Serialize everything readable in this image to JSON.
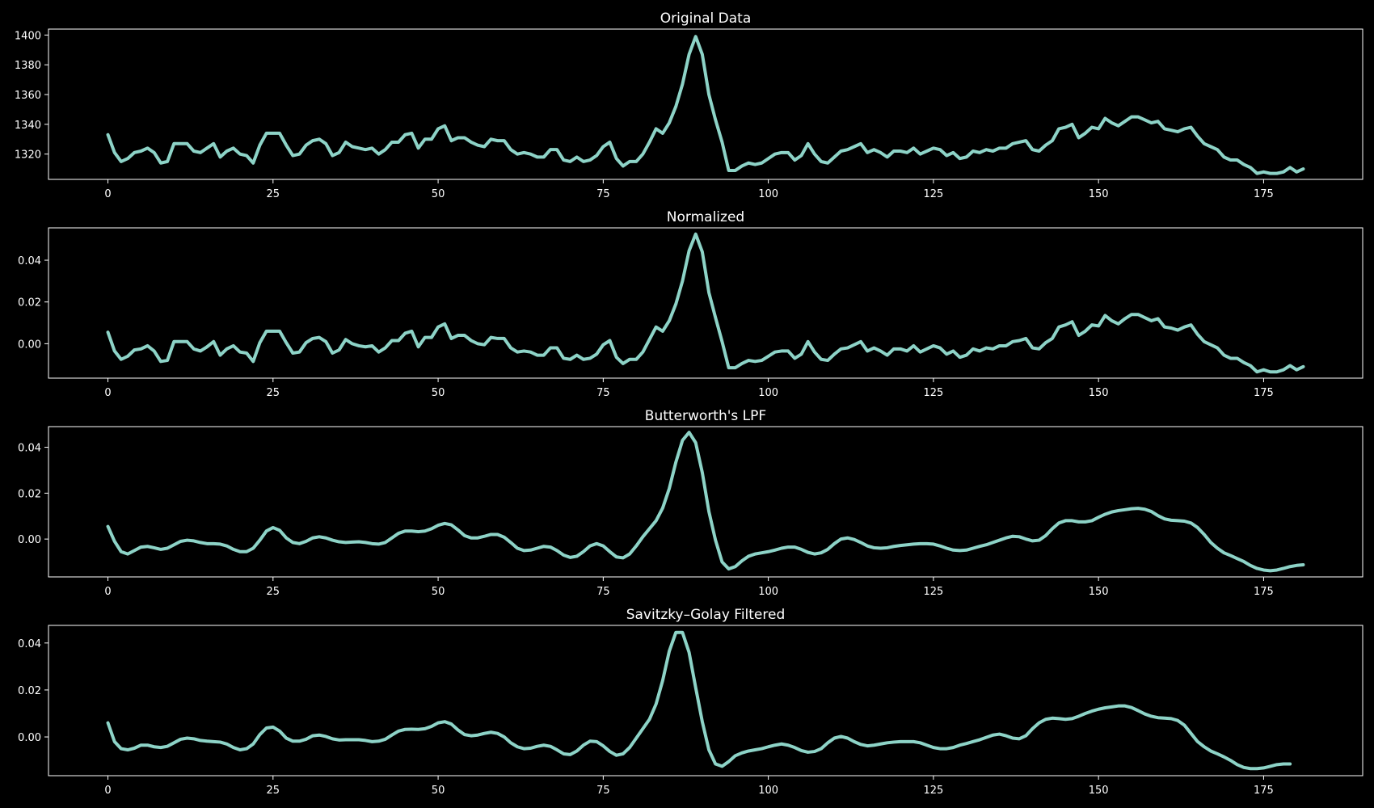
{
  "chart_data": [
    {
      "type": "line",
      "title": "Original Data",
      "xlim": [
        -9,
        190
      ],
      "ylim": [
        1303,
        1404
      ],
      "xticks": [
        0,
        25,
        50,
        75,
        100,
        125,
        150,
        175
      ],
      "yticks": [
        1320,
        1340,
        1360,
        1380,
        1400
      ],
      "ytick_decimals": 0,
      "line_color": "#8dd3c7",
      "series": [
        {
          "x_start": 0,
          "values": [
            1333,
            1321,
            1315,
            1317,
            1321,
            1322,
            1324,
            1321,
            1314,
            1315,
            1327,
            1327,
            1327,
            1322,
            1321,
            1324,
            1327,
            1318,
            1322,
            1324,
            1320,
            1319,
            1314,
            1326,
            1334,
            1334,
            1334,
            1326,
            1319,
            1320,
            1326,
            1329,
            1330,
            1327,
            1319,
            1321,
            1328,
            1325,
            1324,
            1323,
            1324,
            1320,
            1323,
            1328,
            1328,
            1333,
            1334,
            1324,
            1330,
            1330,
            1337,
            1339,
            1329,
            1331,
            1331,
            1328,
            1326,
            1325,
            1330,
            1329,
            1329,
            1323,
            1320,
            1321,
            1320,
            1318,
            1318,
            1323,
            1323,
            1316,
            1315,
            1318,
            1315,
            1316,
            1319,
            1325,
            1328,
            1317,
            1312,
            1315,
            1315,
            1320,
            1328,
            1337,
            1334,
            1341,
            1352,
            1367,
            1387,
            1399,
            1387,
            1360,
            1343,
            1328,
            1309,
            1309,
            1312,
            1314,
            1313,
            1314,
            1317,
            1320,
            1321,
            1321,
            1316,
            1319,
            1327,
            1320,
            1315,
            1314,
            1318,
            1322,
            1323,
            1325,
            1327,
            1321,
            1323,
            1321,
            1318,
            1322,
            1322,
            1321,
            1324,
            1320,
            1322,
            1324,
            1323,
            1319,
            1321,
            1317,
            1318,
            1322,
            1321,
            1323,
            1322,
            1324,
            1324,
            1327,
            1328,
            1329,
            1323,
            1322,
            1326,
            1329,
            1337,
            1338,
            1340,
            1331,
            1334,
            1338,
            1337,
            1344,
            1341,
            1339,
            1342,
            1345,
            1345,
            1343,
            1341,
            1342,
            1337,
            1336,
            1335,
            1337,
            1338,
            1332,
            1327,
            1325,
            1323,
            1318,
            1316,
            1316,
            1313,
            1311,
            1307,
            1308,
            1307,
            1307,
            1308,
            1311,
            1308,
            1310
          ]
        }
      ]
    },
    {
      "type": "line",
      "title": "Normalized",
      "xlim": [
        -9,
        190
      ],
      "ylim": [
        -0.0165,
        0.0555
      ],
      "xticks": [
        0,
        25,
        50,
        75,
        100,
        125,
        150,
        175
      ],
      "yticks": [
        0.0,
        0.02,
        0.04
      ],
      "ytick_decimals": 2,
      "line_color": "#8dd3c7",
      "series": [
        {
          "x_start": 0,
          "values": [
            0.0055,
            -0.0035,
            -0.0075,
            -0.006,
            -0.003,
            -0.0025,
            -0.001,
            -0.0035,
            -0.0085,
            -0.008,
            0.001,
            0.001,
            0.001,
            -0.0025,
            -0.0035,
            -0.0015,
            0.001,
            -0.0055,
            -0.0025,
            -0.001,
            -0.004,
            -0.0045,
            -0.0085,
            0.0005,
            0.006,
            0.006,
            0.006,
            0.0005,
            -0.0045,
            -0.004,
            0.0005,
            0.0025,
            0.003,
            0.001,
            -0.0045,
            -0.003,
            0.002,
            0.0,
            -0.001,
            -0.0015,
            -0.001,
            -0.004,
            -0.002,
            0.0015,
            0.0015,
            0.005,
            0.006,
            -0.0015,
            0.003,
            0.003,
            0.008,
            0.0095,
            0.0025,
            0.004,
            0.004,
            0.0015,
            0.0,
            -0.0005,
            0.003,
            0.0025,
            0.0025,
            -0.002,
            -0.004,
            -0.0035,
            -0.004,
            -0.0055,
            -0.0055,
            -0.002,
            -0.002,
            -0.007,
            -0.0075,
            -0.0055,
            -0.0075,
            -0.007,
            -0.005,
            -0.0005,
            0.0015,
            -0.0065,
            -0.0095,
            -0.0075,
            -0.0075,
            -0.004,
            0.002,
            0.008,
            0.006,
            0.011,
            0.019,
            0.03,
            0.0445,
            0.0525,
            0.044,
            0.0245,
            0.0125,
            0.001,
            -0.0115,
            -0.0115,
            -0.0095,
            -0.008,
            -0.0085,
            -0.008,
            -0.006,
            -0.004,
            -0.0035,
            -0.0035,
            -0.007,
            -0.005,
            0.001,
            -0.004,
            -0.0075,
            -0.008,
            -0.005,
            -0.0025,
            -0.002,
            -0.0005,
            0.001,
            -0.0035,
            -0.002,
            -0.0035,
            -0.0055,
            -0.0025,
            -0.0025,
            -0.0035,
            -0.001,
            -0.004,
            -0.0025,
            -0.001,
            -0.002,
            -0.005,
            -0.0035,
            -0.0065,
            -0.0055,
            -0.0025,
            -0.0035,
            -0.002,
            -0.0025,
            -0.001,
            -0.001,
            0.001,
            0.0015,
            0.0025,
            -0.002,
            -0.0025,
            0.0005,
            0.0025,
            0.008,
            0.009,
            0.0105,
            0.004,
            0.006,
            0.009,
            0.0085,
            0.0135,
            0.011,
            0.0095,
            0.012,
            0.014,
            0.014,
            0.0125,
            0.011,
            0.012,
            0.008,
            0.0075,
            0.0065,
            0.008,
            0.009,
            0.0045,
            0.001,
            -0.0005,
            -0.002,
            -0.0055,
            -0.007,
            -0.007,
            -0.009,
            -0.0105,
            -0.0135,
            -0.0125,
            -0.0135,
            -0.0135,
            -0.0125,
            -0.0105,
            -0.0125,
            -0.011
          ]
        }
      ]
    },
    {
      "type": "line",
      "title": "Butterworth's LPF",
      "xlim": [
        -9,
        190
      ],
      "ylim": [
        -0.0165,
        0.049
      ],
      "xticks": [
        0,
        25,
        50,
        75,
        100,
        125,
        150,
        175
      ],
      "yticks": [
        0.0,
        0.02,
        0.04
      ],
      "ytick_decimals": 2,
      "line_color": "#8dd3c7",
      "series": [
        {
          "x_start": 0,
          "values": [
            0.0055,
            -0.001,
            -0.0055,
            -0.0065,
            -0.005,
            -0.0035,
            -0.0032,
            -0.0038,
            -0.0045,
            -0.004,
            -0.0025,
            -0.001,
            -0.0005,
            -0.0008,
            -0.0015,
            -0.002,
            -0.002,
            -0.0022,
            -0.003,
            -0.0045,
            -0.0055,
            -0.0055,
            -0.004,
            -0.0005,
            0.0035,
            0.005,
            0.0038,
            0.0005,
            -0.0015,
            -0.002,
            -0.001,
            0.0005,
            0.001,
            0.0005,
            -0.0005,
            -0.0012,
            -0.0015,
            -0.0013,
            -0.0012,
            -0.0015,
            -0.002,
            -0.0022,
            -0.0015,
            0.0005,
            0.0025,
            0.0035,
            0.0035,
            0.0032,
            0.0035,
            0.0045,
            0.006,
            0.0068,
            0.0062,
            0.004,
            0.0015,
            0.0005,
            0.0005,
            0.0012,
            0.002,
            0.002,
            0.0008,
            -0.0015,
            -0.004,
            -0.005,
            -0.0048,
            -0.004,
            -0.0032,
            -0.0035,
            -0.005,
            -0.007,
            -0.008,
            -0.0075,
            -0.0055,
            -0.003,
            -0.002,
            -0.003,
            -0.0055,
            -0.0078,
            -0.0082,
            -0.0065,
            -0.003,
            0.001,
            0.0045,
            0.008,
            0.0135,
            0.022,
            0.0335,
            0.043,
            0.0465,
            0.042,
            0.029,
            0.012,
            -0.0005,
            -0.01,
            -0.013,
            -0.012,
            -0.0095,
            -0.0075,
            -0.0065,
            -0.006,
            -0.0055,
            -0.0048,
            -0.004,
            -0.0035,
            -0.0035,
            -0.0045,
            -0.0058,
            -0.0065,
            -0.006,
            -0.0045,
            -0.002,
            0.0,
            0.0005,
            -0.0002,
            -0.0015,
            -0.003,
            -0.0038,
            -0.004,
            -0.0038,
            -0.0032,
            -0.0028,
            -0.0025,
            -0.0022,
            -0.002,
            -0.002,
            -0.0022,
            -0.003,
            -0.004,
            -0.0048,
            -0.005,
            -0.0048,
            -0.004,
            -0.0032,
            -0.0025,
            -0.0015,
            -0.0005,
            0.0005,
            0.0012,
            0.001,
            0.0,
            -0.0008,
            -0.0005,
            0.0015,
            0.0045,
            0.007,
            0.008,
            0.008,
            0.0075,
            0.0075,
            0.008,
            0.0095,
            0.0108,
            0.0118,
            0.0124,
            0.0128,
            0.0132,
            0.0134,
            0.013,
            0.012,
            0.0102,
            0.0088,
            0.0082,
            0.008,
            0.0078,
            0.007,
            0.005,
            0.002,
            -0.0015,
            -0.004,
            -0.006,
            -0.0072,
            -0.0085,
            -0.0098,
            -0.0115,
            -0.0128,
            -0.0135,
            -0.0138,
            -0.0135,
            -0.0128,
            -0.012,
            -0.0115,
            -0.0112
          ]
        }
      ]
    },
    {
      "type": "line",
      "title": "Savitzky–Golay Filtered",
      "xlim": [
        -9,
        190
      ],
      "ylim": [
        -0.0165,
        0.0475
      ],
      "xticks": [
        0,
        25,
        50,
        75,
        100,
        125,
        150,
        175
      ],
      "yticks": [
        0.0,
        0.02,
        0.04
      ],
      "ytick_decimals": 2,
      "line_color": "#8dd3c7",
      "series": [
        {
          "x_start": 0,
          "values": [
            0.006,
            -0.002,
            -0.005,
            -0.0055,
            -0.0048,
            -0.0035,
            -0.0035,
            -0.0042,
            -0.0045,
            -0.004,
            -0.0025,
            -0.001,
            -0.0005,
            -0.0008,
            -0.0015,
            -0.0018,
            -0.002,
            -0.0022,
            -0.003,
            -0.0045,
            -0.0055,
            -0.005,
            -0.003,
            0.001,
            0.0038,
            0.0042,
            0.0025,
            -0.0005,
            -0.0018,
            -0.0018,
            -0.001,
            0.0005,
            0.0008,
            0.0002,
            -0.0008,
            -0.0013,
            -0.0012,
            -0.0012,
            -0.0012,
            -0.0015,
            -0.002,
            -0.0018,
            -0.001,
            0.0008,
            0.0025,
            0.0032,
            0.0033,
            0.0032,
            0.0035,
            0.0045,
            0.006,
            0.0065,
            0.0055,
            0.003,
            0.001,
            0.0005,
            0.0008,
            0.0015,
            0.002,
            0.0015,
            0.0,
            -0.0025,
            -0.0042,
            -0.005,
            -0.0048,
            -0.004,
            -0.0035,
            -0.004,
            -0.0055,
            -0.0072,
            -0.0075,
            -0.006,
            -0.0035,
            -0.0018,
            -0.002,
            -0.0038,
            -0.0062,
            -0.0078,
            -0.0072,
            -0.0045,
            -0.0005,
            0.0035,
            0.0075,
            0.014,
            0.024,
            0.0365,
            0.0445,
            0.0445,
            0.036,
            0.021,
            0.0065,
            -0.0055,
            -0.0115,
            -0.0125,
            -0.0105,
            -0.008,
            -0.0068,
            -0.006,
            -0.0055,
            -0.005,
            -0.0042,
            -0.0035,
            -0.003,
            -0.0035,
            -0.0045,
            -0.0058,
            -0.0065,
            -0.0062,
            -0.005,
            -0.0025,
            -0.0005,
            0.0002,
            -0.0005,
            -0.002,
            -0.0032,
            -0.0038,
            -0.0035,
            -0.003,
            -0.0025,
            -0.0022,
            -0.002,
            -0.002,
            -0.002,
            -0.0025,
            -0.0035,
            -0.0045,
            -0.005,
            -0.005,
            -0.0045,
            -0.0035,
            -0.0028,
            -0.002,
            -0.0012,
            -0.0002,
            0.0008,
            0.0012,
            0.0005,
            -0.0005,
            -0.0008,
            0.0005,
            0.0035,
            0.006,
            0.0075,
            0.008,
            0.0078,
            0.0075,
            0.0078,
            0.0088,
            0.01,
            0.011,
            0.0118,
            0.0124,
            0.0128,
            0.0132,
            0.0132,
            0.0125,
            0.0112,
            0.0098,
            0.0088,
            0.0082,
            0.008,
            0.0078,
            0.007,
            0.005,
            0.0015,
            -0.002,
            -0.0042,
            -0.006,
            -0.0072,
            -0.0085,
            -0.01,
            -0.0118,
            -0.013,
            -0.0135,
            -0.0135,
            -0.0132,
            -0.0125,
            -0.0118,
            -0.0115,
            -0.0115
          ]
        }
      ]
    }
  ]
}
